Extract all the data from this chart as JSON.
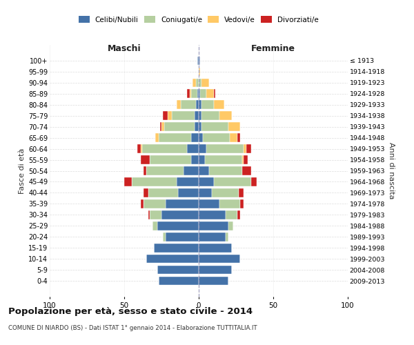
{
  "age_groups": [
    "0-4",
    "5-9",
    "10-14",
    "15-19",
    "20-24",
    "25-29",
    "30-34",
    "35-39",
    "40-44",
    "45-49",
    "50-54",
    "55-59",
    "60-64",
    "65-69",
    "70-74",
    "75-79",
    "80-84",
    "85-89",
    "90-94",
    "95-99",
    "100+"
  ],
  "birth_years": [
    "2009-2013",
    "2004-2008",
    "1999-2003",
    "1994-1998",
    "1989-1993",
    "1984-1988",
    "1979-1983",
    "1974-1978",
    "1969-1973",
    "1964-1968",
    "1959-1963",
    "1954-1958",
    "1949-1953",
    "1944-1948",
    "1939-1943",
    "1934-1938",
    "1929-1933",
    "1924-1928",
    "1919-1923",
    "1914-1918",
    "≤ 1913"
  ],
  "maschi": {
    "celibi": [
      27,
      28,
      35,
      30,
      22,
      28,
      25,
      22,
      14,
      15,
      10,
      5,
      8,
      5,
      3,
      3,
      2,
      1,
      0,
      0,
      1
    ],
    "coniugati": [
      0,
      0,
      0,
      0,
      2,
      3,
      8,
      15,
      20,
      30,
      25,
      28,
      30,
      22,
      20,
      15,
      10,
      4,
      2,
      0,
      0
    ],
    "vedovi": [
      0,
      0,
      0,
      0,
      0,
      0,
      0,
      0,
      0,
      0,
      0,
      0,
      1,
      2,
      2,
      3,
      3,
      1,
      2,
      0,
      0
    ],
    "divorziati": [
      0,
      0,
      0,
      0,
      0,
      0,
      1,
      2,
      3,
      5,
      2,
      6,
      2,
      0,
      1,
      3,
      0,
      2,
      0,
      0,
      0
    ]
  },
  "femmine": {
    "nubili": [
      20,
      22,
      28,
      22,
      18,
      20,
      18,
      14,
      9,
      10,
      7,
      4,
      5,
      3,
      2,
      2,
      2,
      1,
      0,
      0,
      1
    ],
    "coniugate": [
      0,
      0,
      0,
      0,
      2,
      3,
      8,
      14,
      18,
      25,
      22,
      25,
      25,
      18,
      18,
      12,
      8,
      4,
      2,
      0,
      0
    ],
    "vedove": [
      0,
      0,
      0,
      0,
      0,
      0,
      0,
      0,
      0,
      0,
      0,
      1,
      2,
      5,
      8,
      8,
      7,
      5,
      5,
      1,
      0
    ],
    "divorziate": [
      0,
      0,
      0,
      0,
      0,
      0,
      2,
      2,
      3,
      4,
      6,
      3,
      3,
      2,
      0,
      0,
      0,
      1,
      0,
      0,
      0
    ]
  },
  "colors": {
    "celibi": "#4472a8",
    "coniugati": "#b5cfa0",
    "vedovi": "#ffc966",
    "divorziati": "#cc2222"
  },
  "xlim": 100,
  "title": "Popolazione per età, sesso e stato civile - 2014",
  "subtitle": "COMUNE DI NIARDO (BS) - Dati ISTAT 1° gennaio 2014 - Elaborazione TUTTITALIA.IT",
  "ylabel_left": "Fasce di età",
  "ylabel_right": "Anni di nascita",
  "xlabel_left": "Maschi",
  "xlabel_right": "Femmine"
}
